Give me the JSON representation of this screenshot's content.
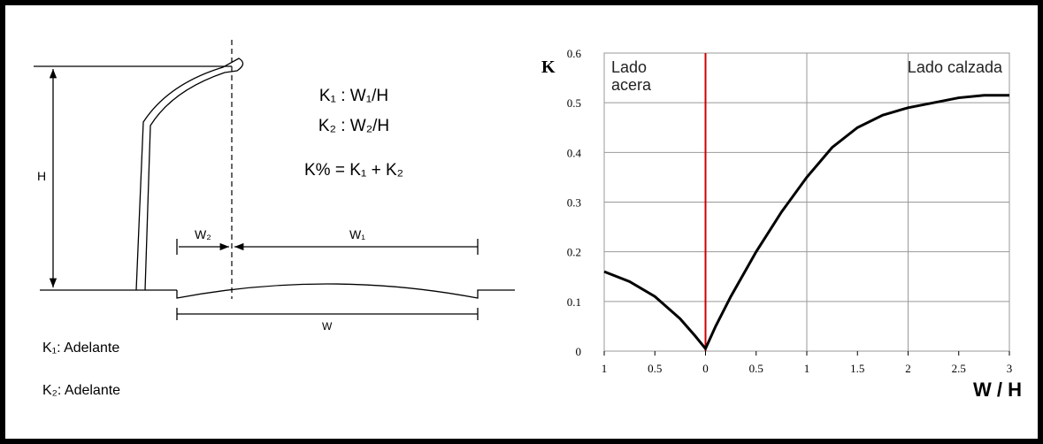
{
  "diagram": {
    "dimensions": {
      "height": "H",
      "w2": "W₂",
      "w1": "W₁",
      "w": "W"
    },
    "formulas": [
      "K₁ : W₁/H",
      "K₂ : W₂/H",
      "K% = K₁ + K₂"
    ],
    "notes": [
      "K₁: Adelante",
      "K₂: Adelante"
    ]
  },
  "chart_data": {
    "type": "line",
    "y_label": "K",
    "x_label": "W / H",
    "annotations": [
      {
        "lines": [
          "Lado",
          "acera"
        ]
      },
      {
        "lines": [
          "Lado calzada"
        ]
      }
    ],
    "reference_line": {
      "x": 0,
      "color": "#cc0000"
    },
    "x": [
      -1,
      -0.75,
      -0.5,
      -0.25,
      -0.1,
      0,
      0.1,
      0.25,
      0.5,
      0.75,
      1,
      1.25,
      1.5,
      1.75,
      2,
      2.25,
      2.5,
      2.75,
      3
    ],
    "series": [
      {
        "color": "#000000",
        "values": [
          0.16,
          0.14,
          0.11,
          0.065,
          0.03,
          0.005,
          0.05,
          0.11,
          0.2,
          0.28,
          0.35,
          0.41,
          0.45,
          0.475,
          0.49,
          0.5,
          0.51,
          0.515,
          0.515
        ]
      }
    ],
    "xlim": [
      -1,
      3
    ],
    "ylim": [
      0,
      0.6
    ],
    "xticks": [
      {
        "value": -1,
        "label": "1"
      },
      {
        "value": -0.5,
        "label": "0.5"
      },
      0,
      0.5,
      1,
      1.5,
      2,
      2.5,
      3
    ],
    "yticks": [
      0,
      0.1,
      0.2,
      0.3,
      0.4,
      0.5,
      0.6
    ],
    "grid": true
  }
}
